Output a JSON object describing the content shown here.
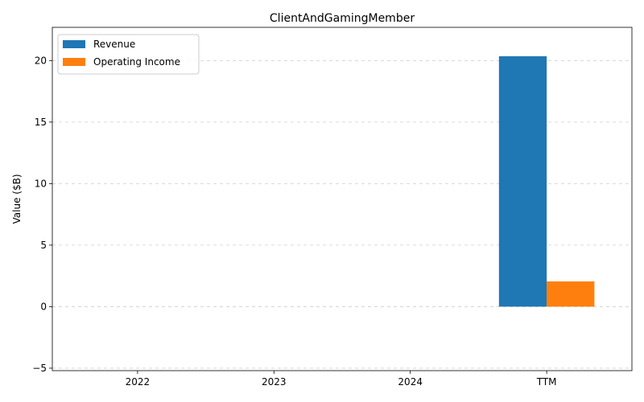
{
  "chart_data": {
    "type": "bar",
    "title": "ClientAndGamingMember",
    "xlabel": "",
    "ylabel": "Value ($B)",
    "categories": [
      "2022",
      "2023",
      "2024",
      "TTM"
    ],
    "series": [
      {
        "name": "Revenue",
        "color": "#1f77b4",
        "values": [
          0,
          0,
          0,
          20.35
        ]
      },
      {
        "name": "Operating Income",
        "color": "#ff7f0e",
        "values": [
          0,
          0,
          0,
          2.05
        ]
      }
    ],
    "ylim": [
      -5.2,
      22.7
    ],
    "yticks": [
      -5,
      0,
      5,
      10,
      15,
      20
    ],
    "grid": true,
    "legend": "top-left"
  }
}
